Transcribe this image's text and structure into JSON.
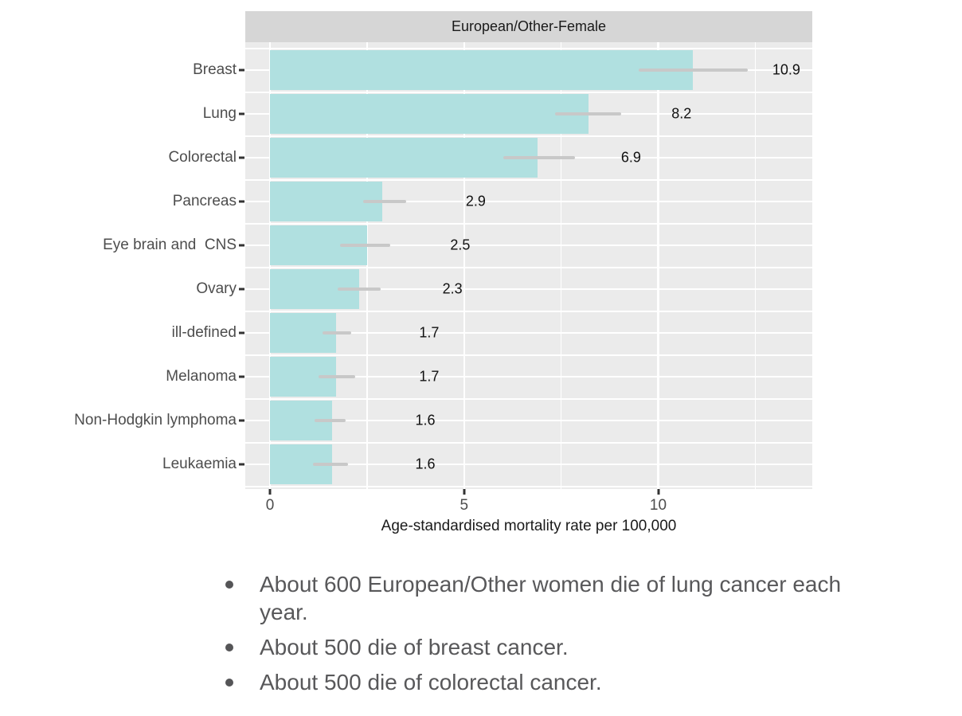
{
  "chart_data": {
    "type": "bar",
    "orientation": "horizontal",
    "facet_title": "European/Other-Female",
    "categories": [
      "Breast",
      "Lung",
      "Colorectal",
      "Pancreas",
      "Eye brain and  CNS",
      "Ovary",
      "ill-defined",
      "Melanoma",
      "Non-Hodgkin lymphoma",
      "Leukaemia"
    ],
    "values": [
      10.9,
      8.2,
      6.9,
      2.9,
      2.5,
      2.3,
      1.7,
      1.7,
      1.6,
      1.6
    ],
    "value_labels": [
      "10.9",
      "8.2",
      "6.9",
      "2.9",
      "2.5",
      "2.3",
      "1.7",
      "1.7",
      "1.6",
      "1.6"
    ],
    "error_low": [
      9.5,
      7.35,
      6.0,
      2.4,
      1.8,
      1.75,
      1.35,
      1.25,
      1.15,
      1.1
    ],
    "error_high": [
      12.3,
      9.05,
      7.85,
      3.5,
      3.1,
      2.85,
      2.1,
      2.2,
      1.95,
      2.0
    ],
    "xlabel": "Age-standardised mortality rate per 100,000",
    "x_major_ticks": [
      0,
      5,
      10
    ],
    "x_major_tick_labels": [
      "0",
      "5",
      "10"
    ],
    "x_minor_ticks": [
      2.5,
      7.5,
      12.5
    ],
    "xlim": [
      -0.64,
      13.97
    ],
    "grid": true,
    "legend": "none",
    "colors": {
      "bar_fill": "#b0e0e0",
      "panel_bg": "#ebebeb",
      "strip_bg": "#d6d6d6",
      "grid_line": "#ffffff",
      "error_bar": "#c8c8c8",
      "axis_text": "#4d4d4d",
      "title_text": "#1a1a1a",
      "note_text": "#58585a"
    }
  },
  "notes": {
    "items": [
      "About 600 European/Other women die of lung cancer each year.",
      "About 500 die of breast cancer.",
      "About 500 die of colorectal cancer."
    ]
  }
}
